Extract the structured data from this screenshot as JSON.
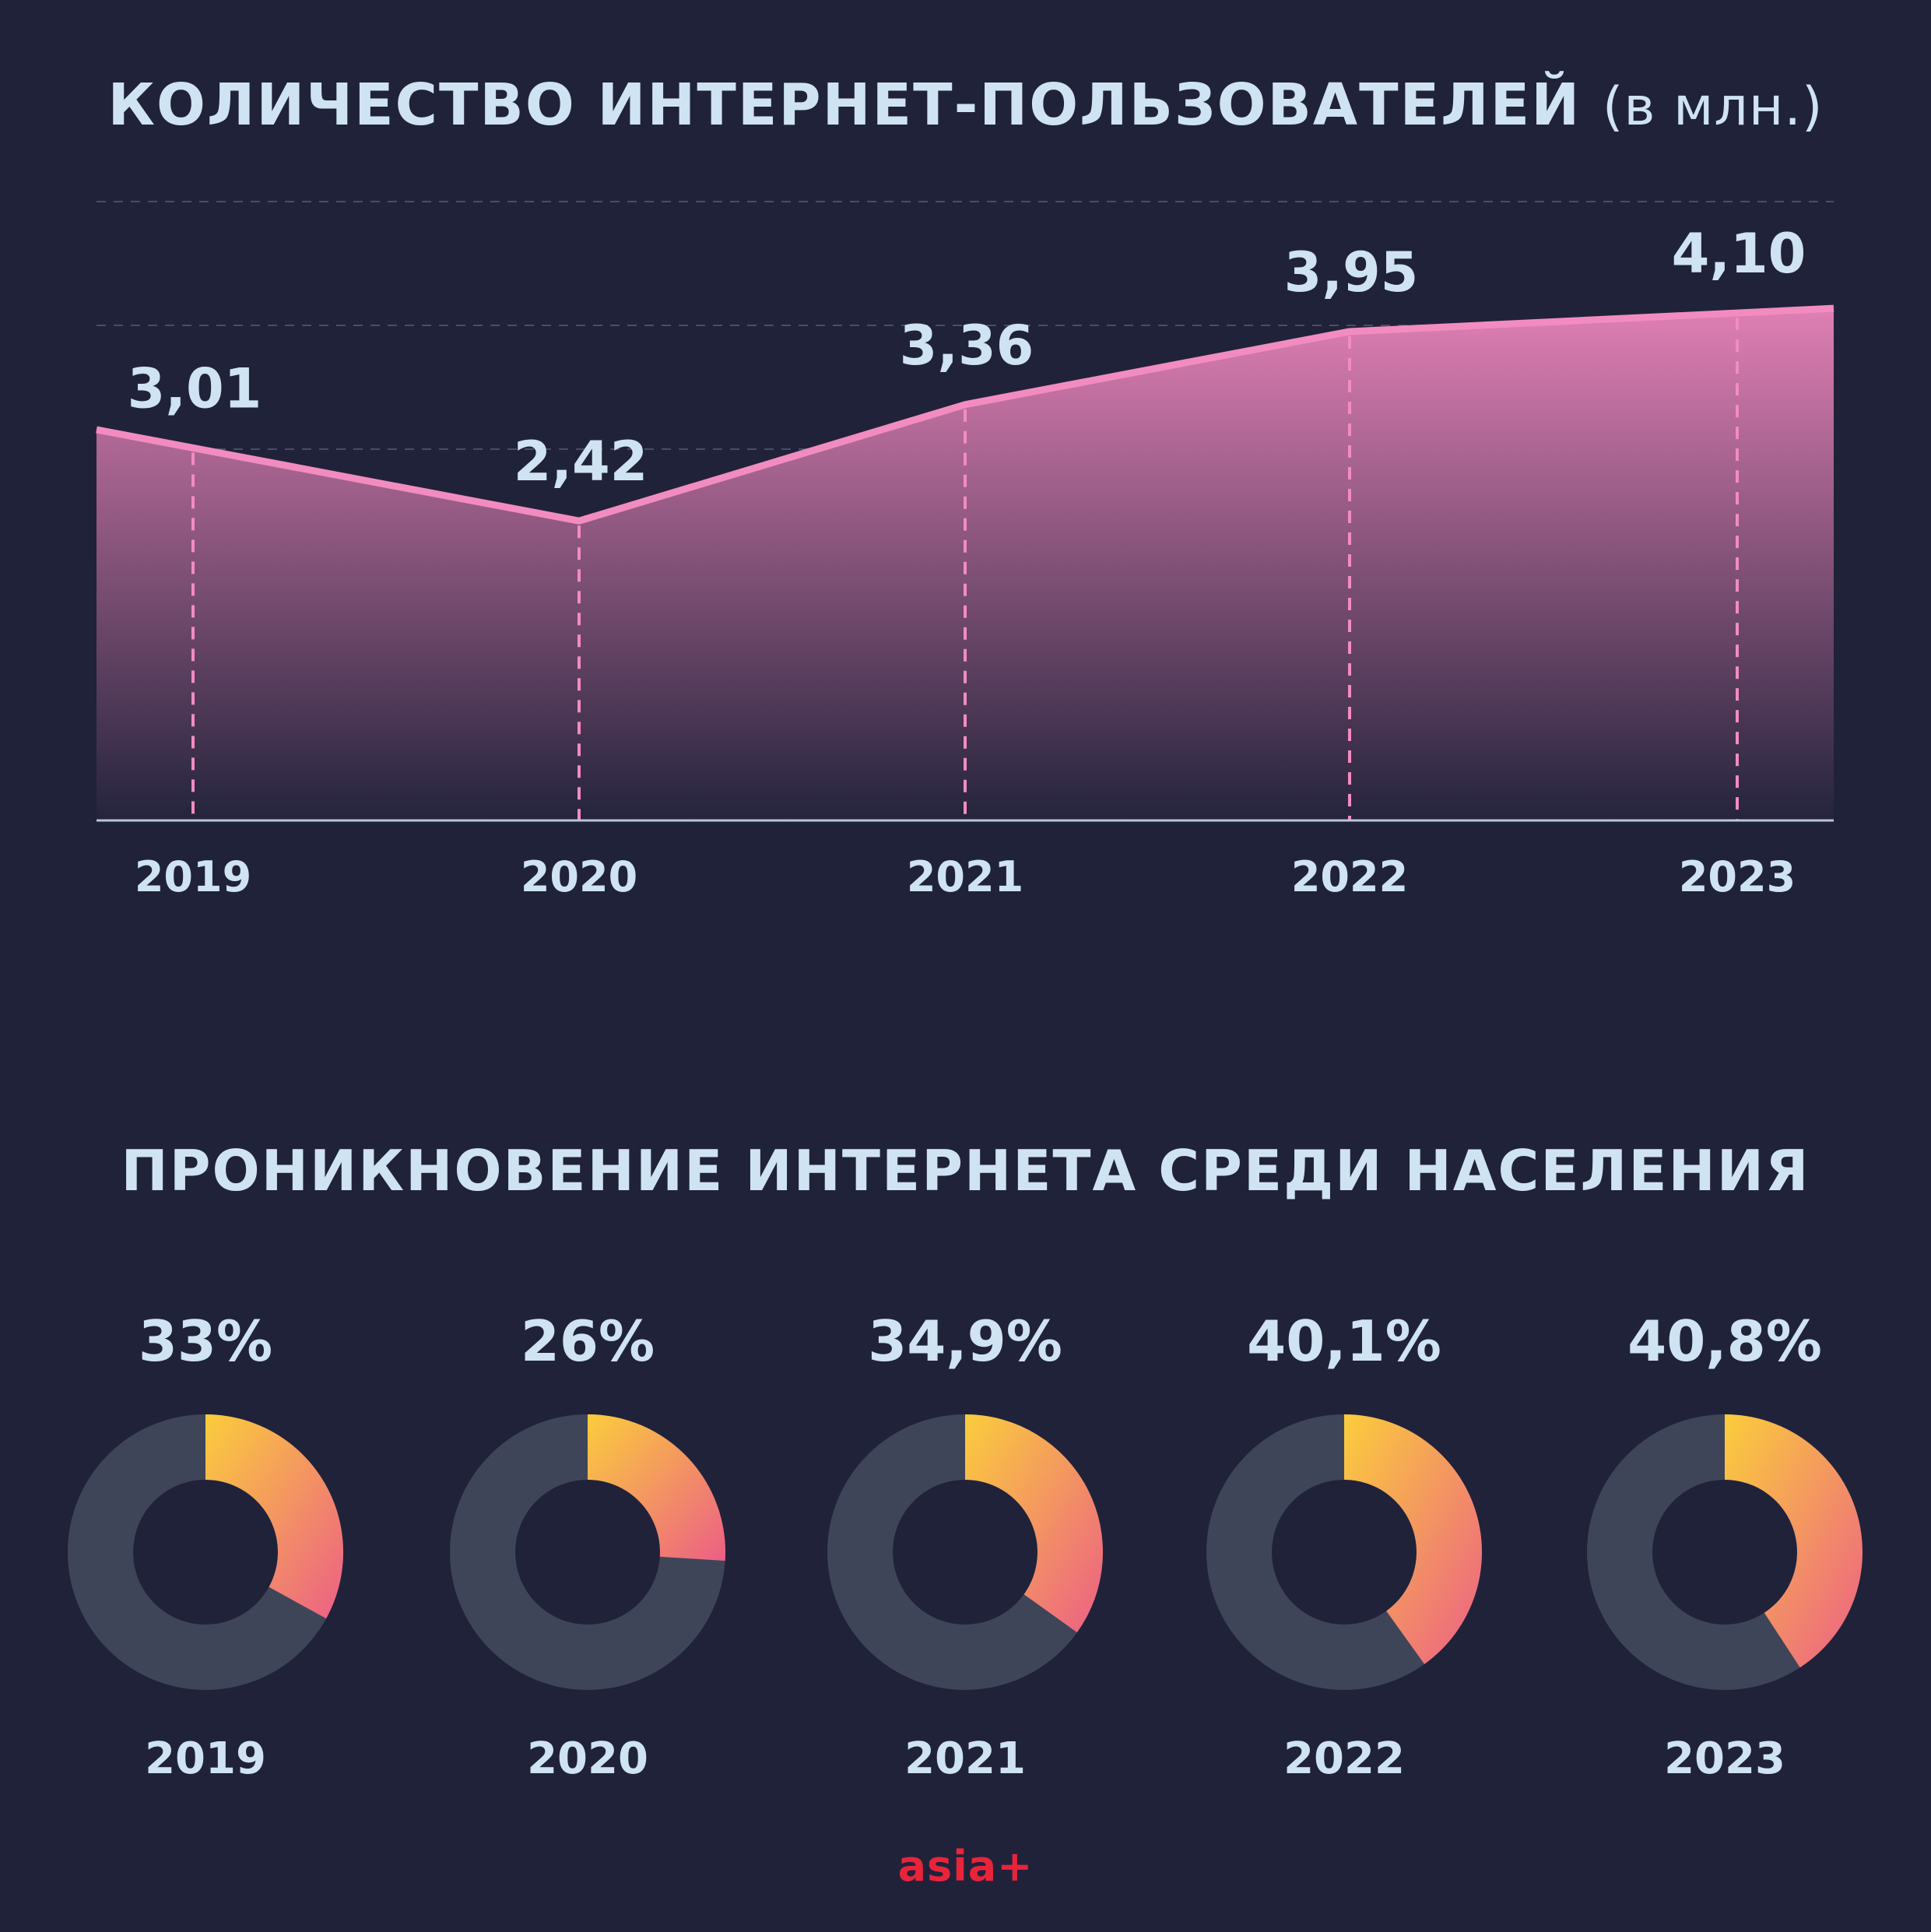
{
  "colors": {
    "background": "#20223a",
    "text": "#cfe3f2",
    "line": "#f28cc0",
    "area_top": "#e07fb4",
    "area_bottom": "#24243c",
    "donut_track": "#3f4559",
    "donut_grad_start": "#fbcd3c",
    "donut_grad_end": "#ec5f86",
    "brand": "#e8243a"
  },
  "header": {
    "title_main": "КОЛИЧЕСТВО ИНТЕРНЕТ-ПОЛЬЗОВАТЕЛЕЙ",
    "title_unit": "(в млн.)"
  },
  "section2": {
    "title": "ПРОНИКНОВЕНИЕ ИНТЕРНЕТА СРЕДИ НАСЕЛЕНИЯ"
  },
  "chart_data": [
    {
      "type": "area",
      "title": "КОЛИЧЕСТВО ИНТЕРНЕТ-ПОЛЬЗОВАТЕЛЕЙ (в млн.)",
      "categories": [
        "2019",
        "2020",
        "2021",
        "2022",
        "2023"
      ],
      "values": [
        3.01,
        2.42,
        3.36,
        3.95,
        4.1
      ],
      "value_labels": [
        "3,01",
        "2,42",
        "3,36",
        "3,95",
        "4,10"
      ],
      "ylim": [
        0,
        5
      ],
      "grid": true
    },
    {
      "type": "pie",
      "title": "ПРОНИКНОВЕНИЕ ИНТЕРНЕТА СРЕДИ НАСЕЛЕНИЯ",
      "categories": [
        "2019",
        "2020",
        "2021",
        "2022",
        "2023"
      ],
      "values": [
        33,
        26,
        34.9,
        40.1,
        40.8
      ],
      "value_labels": [
        "33%",
        "26%",
        "34,9%",
        "40,1%",
        "40,8%"
      ]
    }
  ],
  "footer": {
    "logo": "asia+"
  }
}
